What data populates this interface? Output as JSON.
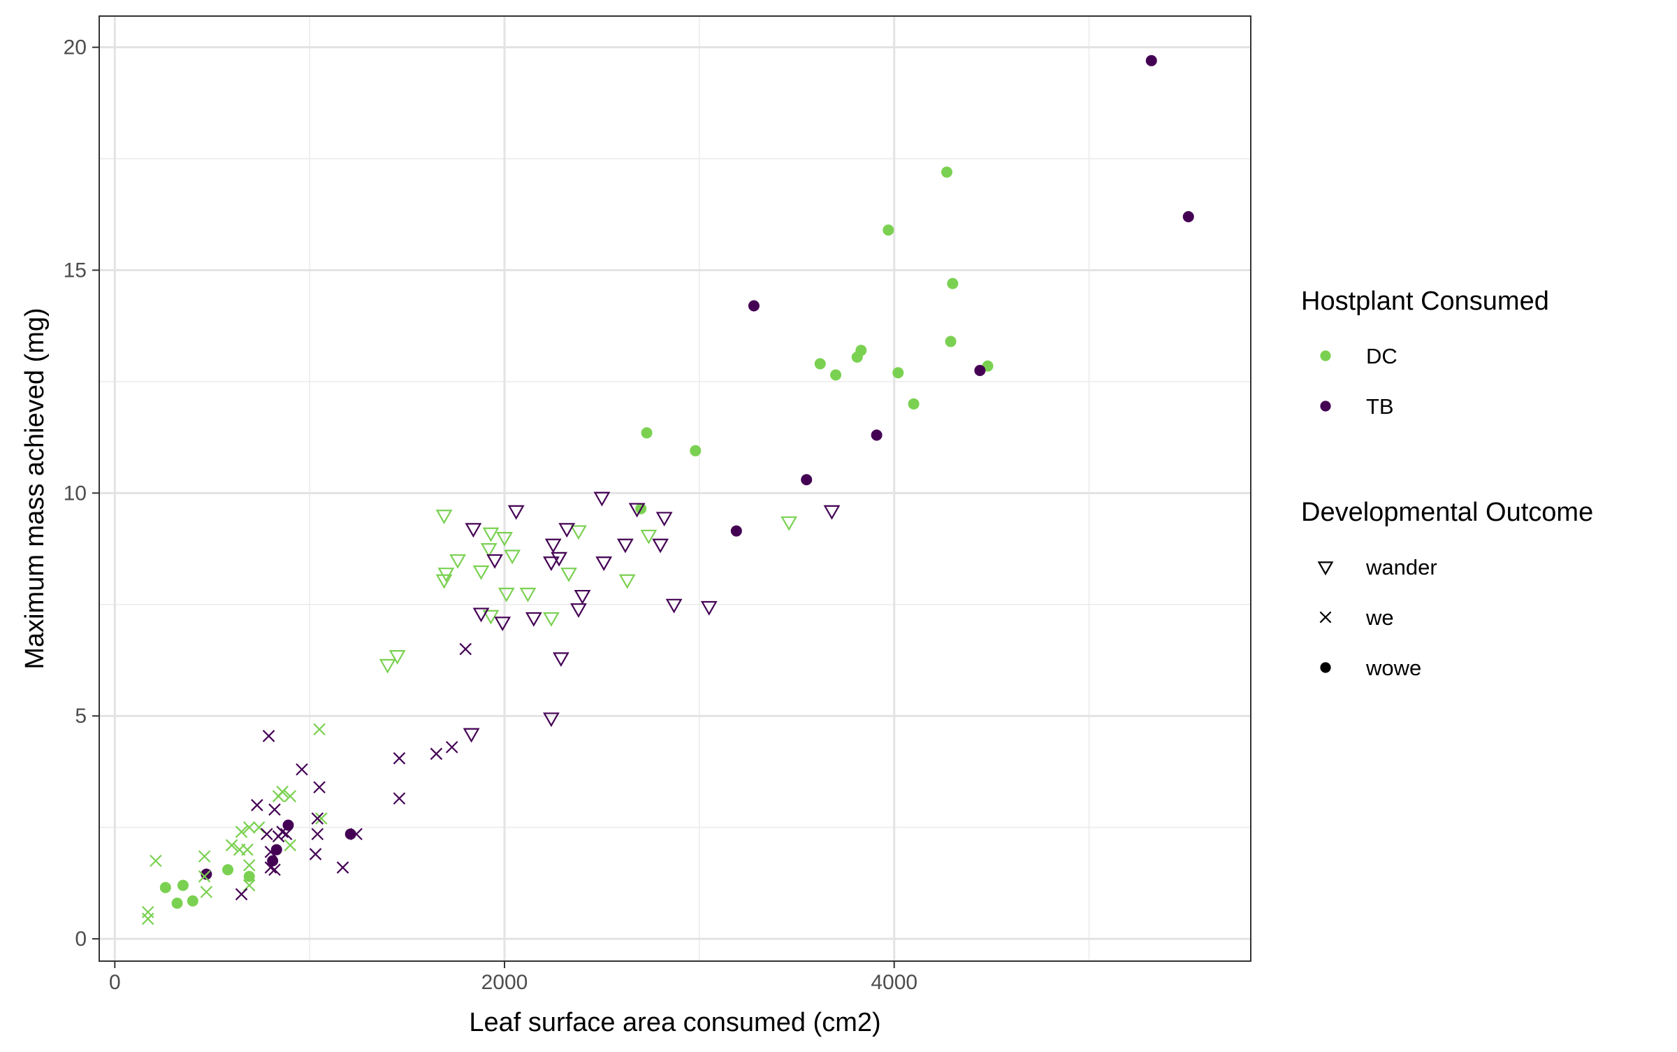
{
  "chart_data": {
    "type": "scatter",
    "title": "",
    "xlabel": "Leaf surface area consumed (cm2)",
    "ylabel": "Maximum mass achieved (mg)",
    "xlim": [
      -80,
      5830
    ],
    "ylim": [
      -0.5,
      20.7
    ],
    "xticks": [
      0,
      2000,
      4000
    ],
    "xtick_labels": [
      "0",
      "2000",
      "4000"
    ],
    "xminor": [
      1000,
      3000,
      5000
    ],
    "yticks": [
      0,
      5,
      10,
      15,
      20
    ],
    "ytick_labels": [
      "0",
      "5",
      "10",
      "15",
      "20"
    ],
    "yminor": [
      2.5,
      7.5,
      12.5,
      17.5
    ],
    "grid": true,
    "legend_position": "right",
    "legends": [
      {
        "title": "Hostplant Consumed",
        "items": [
          {
            "label": "DC",
            "color": "#7AD151",
            "shape": "circle"
          },
          {
            "label": "TB",
            "color": "#440154",
            "shape": "circle"
          }
        ]
      },
      {
        "title": "Developmental Outcome",
        "items": [
          {
            "label": "wander",
            "color": "#000000",
            "shape": "triangle-down"
          },
          {
            "label": "we",
            "color": "#000000",
            "shape": "cross"
          },
          {
            "label": "wowe",
            "color": "#000000",
            "shape": "circle"
          }
        ]
      }
    ],
    "colors": {
      "DC": "#7AD151",
      "TB": "#440154"
    },
    "series": [
      {
        "name": "DC",
        "outcome": "wowe",
        "points": [
          [
            4270,
            17.2
          ],
          [
            3970,
            15.9
          ],
          [
            4300,
            14.7
          ],
          [
            4290,
            13.4
          ],
          [
            3830,
            13.2
          ],
          [
            3810,
            13.05
          ],
          [
            3620,
            12.9
          ],
          [
            3700,
            12.65
          ],
          [
            4020,
            12.7
          ],
          [
            4480,
            12.85
          ],
          [
            4100,
            12.0
          ],
          [
            2730,
            11.35
          ],
          [
            2980,
            10.95
          ],
          [
            2700,
            9.65
          ],
          [
            260,
            1.15
          ],
          [
            350,
            1.2
          ],
          [
            320,
            0.8
          ],
          [
            400,
            0.85
          ],
          [
            580,
            1.55
          ],
          [
            690,
            1.4
          ]
        ]
      },
      {
        "name": "TB",
        "outcome": "wowe",
        "points": [
          [
            5320,
            19.7
          ],
          [
            5510,
            16.2
          ],
          [
            3280,
            14.2
          ],
          [
            4440,
            12.75
          ],
          [
            3910,
            11.3
          ],
          [
            3550,
            10.3
          ],
          [
            3190,
            9.15
          ],
          [
            1210,
            2.35
          ],
          [
            890,
            2.55
          ],
          [
            830,
            2.0
          ],
          [
            810,
            1.75
          ],
          [
            470,
            1.45
          ]
        ]
      },
      {
        "name": "DC",
        "outcome": "wander",
        "points": [
          [
            1690,
            9.5
          ],
          [
            1930,
            9.1
          ],
          [
            2000,
            9.0
          ],
          [
            2380,
            9.15
          ],
          [
            2740,
            9.05
          ],
          [
            1920,
            8.75
          ],
          [
            2040,
            8.6
          ],
          [
            1760,
            8.5
          ],
          [
            1880,
            8.25
          ],
          [
            1700,
            8.2
          ],
          [
            1690,
            8.05
          ],
          [
            2330,
            8.2
          ],
          [
            2630,
            8.05
          ],
          [
            2010,
            7.75
          ],
          [
            2120,
            7.75
          ],
          [
            1930,
            7.25
          ],
          [
            2240,
            7.2
          ],
          [
            1450,
            6.35
          ],
          [
            1400,
            6.15
          ],
          [
            3460,
            9.35
          ]
        ]
      },
      {
        "name": "TB",
        "outcome": "wander",
        "points": [
          [
            2500,
            9.9
          ],
          [
            2060,
            9.6
          ],
          [
            2680,
            9.65
          ],
          [
            2820,
            9.45
          ],
          [
            1840,
            9.2
          ],
          [
            2320,
            9.2
          ],
          [
            2250,
            8.85
          ],
          [
            2620,
            8.85
          ],
          [
            2800,
            8.85
          ],
          [
            1950,
            8.5
          ],
          [
            2240,
            8.45
          ],
          [
            2280,
            8.55
          ],
          [
            2510,
            8.45
          ],
          [
            2400,
            7.7
          ],
          [
            2380,
            7.4
          ],
          [
            1880,
            7.3
          ],
          [
            1990,
            7.1
          ],
          [
            2150,
            7.2
          ],
          [
            2870,
            7.5
          ],
          [
            3050,
            7.45
          ],
          [
            2290,
            6.3
          ],
          [
            2240,
            4.95
          ],
          [
            1830,
            4.6
          ],
          [
            3680,
            9.6
          ]
        ]
      },
      {
        "name": "DC",
        "outcome": "we",
        "points": [
          [
            1050,
            4.7
          ],
          [
            860,
            3.3
          ],
          [
            840,
            3.2
          ],
          [
            900,
            3.2
          ],
          [
            1060,
            2.7
          ],
          [
            690,
            2.5
          ],
          [
            740,
            2.5
          ],
          [
            650,
            2.4
          ],
          [
            600,
            2.1
          ],
          [
            640,
            2.0
          ],
          [
            680,
            2.0
          ],
          [
            900,
            2.1
          ],
          [
            460,
            1.85
          ],
          [
            470,
            1.05
          ],
          [
            210,
            1.75
          ],
          [
            690,
            1.65
          ],
          [
            690,
            1.2
          ],
          [
            170,
            0.6
          ],
          [
            170,
            0.45
          ],
          [
            460,
            1.4
          ]
        ]
      },
      {
        "name": "TB",
        "outcome": "we",
        "points": [
          [
            790,
            4.55
          ],
          [
            960,
            3.8
          ],
          [
            1050,
            3.4
          ],
          [
            730,
            3.0
          ],
          [
            820,
            2.9
          ],
          [
            1040,
            2.7
          ],
          [
            1460,
            3.15
          ],
          [
            1460,
            4.05
          ],
          [
            1650,
            4.15
          ],
          [
            1730,
            4.3
          ],
          [
            1800,
            6.5
          ],
          [
            1040,
            2.35
          ],
          [
            880,
            2.35
          ],
          [
            780,
            2.35
          ],
          [
            840,
            2.3
          ],
          [
            860,
            2.4
          ],
          [
            1240,
            2.35
          ],
          [
            1170,
            1.6
          ],
          [
            1030,
            1.9
          ],
          [
            800,
            1.95
          ],
          [
            820,
            1.55
          ],
          [
            800,
            1.6
          ],
          [
            650,
            1.0
          ]
        ]
      }
    ]
  }
}
